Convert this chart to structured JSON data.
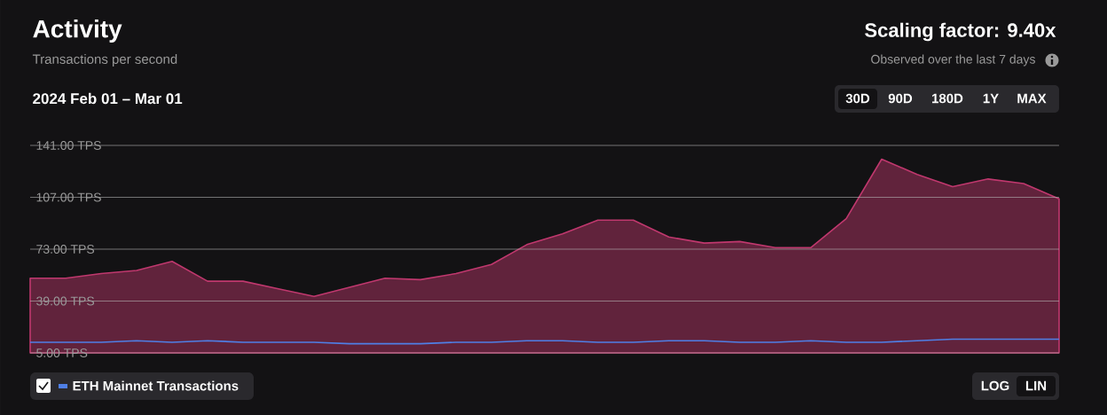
{
  "chart_data": {
    "type": "area",
    "title": "Activity",
    "subtitle": "Transactions per second",
    "categories": [
      null,
      null,
      null,
      null,
      null,
      null,
      null,
      null,
      null,
      null,
      null,
      null,
      null,
      null,
      null,
      null,
      null,
      null,
      null,
      null,
      null,
      null,
      null,
      null,
      null,
      null,
      null,
      null,
      null,
      null
    ],
    "ylim": [
      5,
      141
    ],
    "yticks": [
      {
        "value": 5,
        "label": "5.00 TPS"
      },
      {
        "value": 39,
        "label": "39.00 TPS"
      },
      {
        "value": 73,
        "label": "73.00 TPS"
      },
      {
        "value": 107,
        "label": "107.00 TPS"
      },
      {
        "value": 141,
        "label": "141.00 TPS"
      }
    ],
    "grid": "y",
    "tick_labels": "y",
    "legend": "bottom left",
    "series": [
      {
        "color": "#c0386e",
        "values": [
          54,
          54,
          57,
          59,
          65,
          52,
          52,
          47,
          42,
          48,
          54,
          53,
          57,
          63,
          76,
          83,
          92,
          92,
          81,
          77,
          78,
          74,
          74,
          93,
          132,
          122,
          114,
          119,
          116,
          106
        ]
      },
      {
        "type": "line",
        "name": "ETH Mainnet Transactions",
        "color": "#4f7fe6",
        "values": [
          12,
          12,
          12,
          13,
          12,
          13,
          12,
          12,
          12,
          11,
          11,
          11,
          12,
          12,
          13,
          13,
          12,
          12,
          13,
          13,
          12,
          12,
          13,
          12,
          12,
          13,
          14,
          14,
          14,
          14
        ]
      }
    ],
    "annotations": [
      "2024 Feb 01 – Mar 01",
      "Scaling factor: **9.40x**",
      "Observed over the last 7 days",
      "30D",
      "90D",
      "180D",
      "1Y",
      "MAX",
      "LOG",
      "LIN"
    ]
  }
}
